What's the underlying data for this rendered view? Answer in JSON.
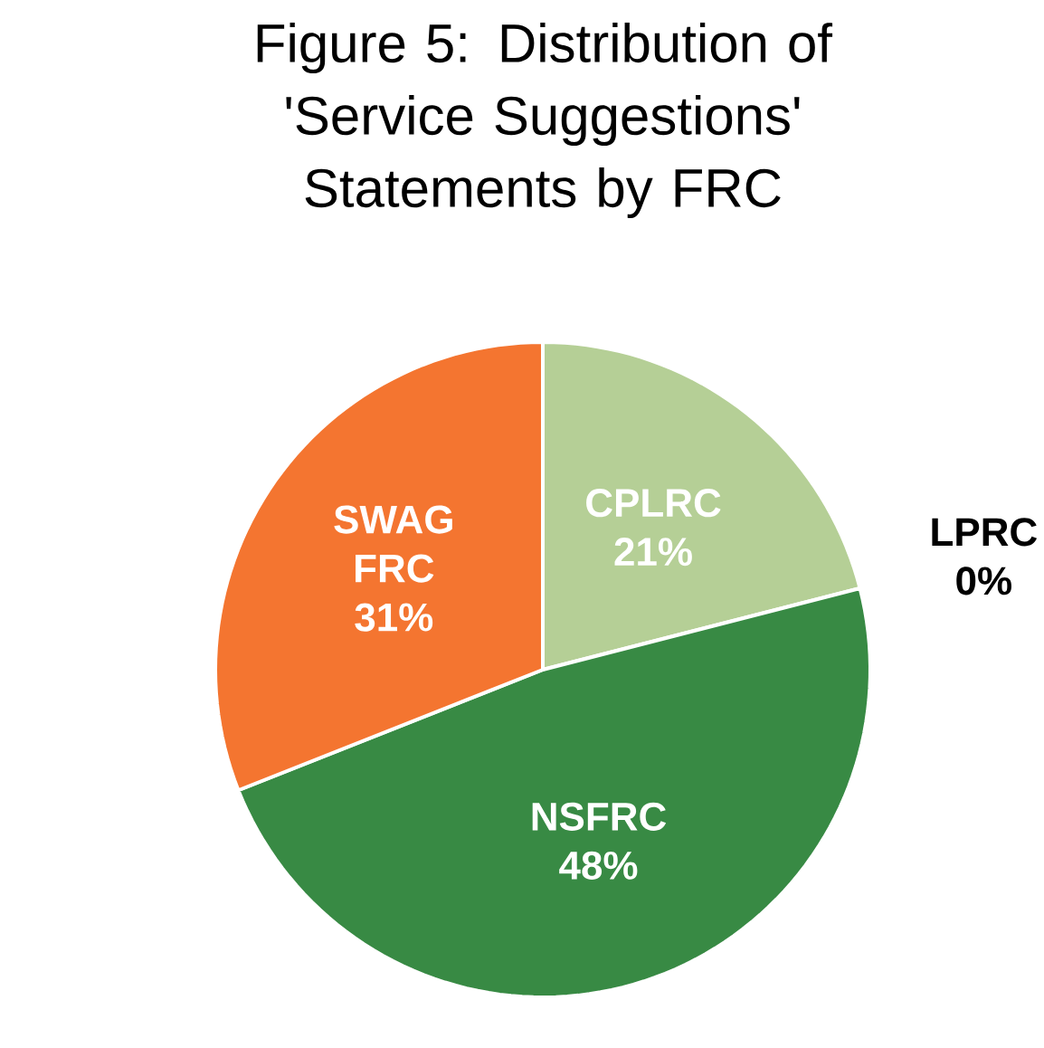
{
  "chart_data": {
    "type": "pie",
    "title": "Figure 5: Distribution of 'Service Suggestions' Statements by FRC",
    "categories": [
      "CPLRC",
      "LPRC",
      "NSFRC",
      "SWAG FRC"
    ],
    "values": [
      21,
      0,
      48,
      31
    ],
    "value_labels": [
      "21%",
      "0%",
      "48%",
      "31%"
    ],
    "colors": [
      "#b5cf96",
      "#a5a5a5",
      "#388a44",
      "#f47530"
    ]
  }
}
